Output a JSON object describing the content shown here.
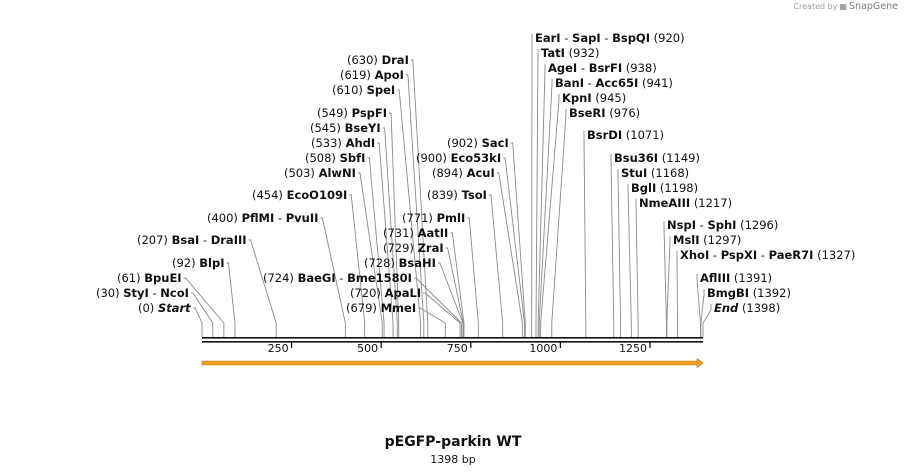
{
  "watermark": {
    "prefix": "Created by",
    "brand": "SnapGene"
  },
  "plasmid": {
    "name": "pEGFP-parkin WT",
    "length_label": "1398 bp",
    "length": 1398
  },
  "axis_ticks": [
    {
      "pos": 250,
      "label": "250"
    },
    {
      "pos": 500,
      "label": "500"
    },
    {
      "pos": 750,
      "label": "750"
    },
    {
      "pos": 1000,
      "label": "1000"
    },
    {
      "pos": 1250,
      "label": "1250"
    }
  ],
  "feature": {
    "name": "orf-arrow",
    "start": 1,
    "end": 1398,
    "color": "#f0a020"
  },
  "sites": [
    {
      "pos": 0,
      "names": [
        "Start"
      ],
      "num": "(0)",
      "italic": true,
      "side": "left"
    },
    {
      "pos": 30,
      "names": [
        "StyI",
        "NcoI"
      ],
      "num": "(30)",
      "side": "left"
    },
    {
      "pos": 61,
      "names": [
        "BpuEI"
      ],
      "num": "(61)",
      "side": "left"
    },
    {
      "pos": 92,
      "names": [
        "BlpI"
      ],
      "num": "(92)",
      "side": "left"
    },
    {
      "pos": 207,
      "names": [
        "BsaI",
        "DraIII"
      ],
      "num": "(207)",
      "side": "left"
    },
    {
      "pos": 400,
      "names": [
        "PflMI",
        "PvuII"
      ],
      "num": "(400)",
      "side": "left"
    },
    {
      "pos": 454,
      "names": [
        "EcoO109I"
      ],
      "num": "(454)",
      "side": "left"
    },
    {
      "pos": 503,
      "names": [
        "AlwNI"
      ],
      "num": "(503)",
      "side": "left"
    },
    {
      "pos": 508,
      "names": [
        "SbfI"
      ],
      "num": "(508)",
      "side": "left"
    },
    {
      "pos": 533,
      "names": [
        "AhdI"
      ],
      "num": "(533)",
      "side": "left"
    },
    {
      "pos": 545,
      "names": [
        "BseYI"
      ],
      "num": "(545)",
      "side": "left"
    },
    {
      "pos": 549,
      "names": [
        "PspFI"
      ],
      "num": "(549)",
      "side": "left"
    },
    {
      "pos": 610,
      "names": [
        "SpeI"
      ],
      "num": "(610)",
      "side": "left"
    },
    {
      "pos": 619,
      "names": [
        "ApoI"
      ],
      "num": "(619)",
      "side": "left"
    },
    {
      "pos": 630,
      "names": [
        "DraI"
      ],
      "num": "(630)",
      "side": "left"
    },
    {
      "pos": 724,
      "names": [
        "BaeGI",
        "Bme1580I"
      ],
      "num": "(724)",
      "side": "left"
    },
    {
      "pos": 720,
      "names": [
        "ApaLI"
      ],
      "num": "(720)",
      "side": "left"
    },
    {
      "pos": 679,
      "names": [
        "MmeI"
      ],
      "num": "(679)",
      "side": "left"
    },
    {
      "pos": 728,
      "names": [
        "BsaHI"
      ],
      "num": "(728)",
      "side": "left"
    },
    {
      "pos": 729,
      "names": [
        "ZraI"
      ],
      "num": "(729)",
      "side": "left"
    },
    {
      "pos": 731,
      "names": [
        "AatII"
      ],
      "num": "(731)",
      "side": "left"
    },
    {
      "pos": 771,
      "names": [
        "PmlI"
      ],
      "num": "(771)",
      "side": "left"
    },
    {
      "pos": 839,
      "names": [
        "TsoI"
      ],
      "num": "(839)",
      "side": "left"
    },
    {
      "pos": 894,
      "names": [
        "AcuI"
      ],
      "num": "(894)",
      "side": "left"
    },
    {
      "pos": 900,
      "names": [
        "Eco53kI"
      ],
      "num": "(900)",
      "side": "left"
    },
    {
      "pos": 902,
      "names": [
        "SacI"
      ],
      "num": "(902)",
      "side": "left"
    },
    {
      "pos": 920,
      "names": [
        "EarI",
        "SapI",
        "BspQI"
      ],
      "num": "(920)",
      "side": "right"
    },
    {
      "pos": 932,
      "names": [
        "TatI"
      ],
      "num": "(932)",
      "side": "right"
    },
    {
      "pos": 938,
      "names": [
        "AgeI",
        "BsrFI"
      ],
      "num": "(938)",
      "side": "right"
    },
    {
      "pos": 941,
      "names": [
        "BanI",
        "Acc65I"
      ],
      "num": "(941)",
      "side": "right"
    },
    {
      "pos": 945,
      "names": [
        "KpnI"
      ],
      "num": "(945)",
      "side": "right"
    },
    {
      "pos": 976,
      "names": [
        "BseRI"
      ],
      "num": "(976)",
      "side": "right"
    },
    {
      "pos": 1071,
      "names": [
        "BsrDI"
      ],
      "num": "(1071)",
      "side": "right"
    },
    {
      "pos": 1149,
      "names": [
        "Bsu36I"
      ],
      "num": "(1149)",
      "side": "right"
    },
    {
      "pos": 1168,
      "names": [
        "StuI"
      ],
      "num": "(1168)",
      "side": "right"
    },
    {
      "pos": 1198,
      "names": [
        "BglI"
      ],
      "num": "(1198)",
      "side": "right"
    },
    {
      "pos": 1217,
      "names": [
        "NmeAIII"
      ],
      "num": "(1217)",
      "side": "right"
    },
    {
      "pos": 1296,
      "names": [
        "NspI",
        "SphI"
      ],
      "num": "(1296)",
      "side": "right"
    },
    {
      "pos": 1297,
      "names": [
        "MslI"
      ],
      "num": "(1297)",
      "side": "right"
    },
    {
      "pos": 1327,
      "names": [
        "XhoI",
        "PspXI",
        "PaeR7I"
      ],
      "num": "(1327)",
      "side": "right"
    },
    {
      "pos": 1391,
      "names": [
        "AflIII"
      ],
      "num": "(1391)",
      "side": "right"
    },
    {
      "pos": 1392,
      "names": [
        "BmgBI"
      ],
      "num": "(1392)",
      "side": "right"
    },
    {
      "pos": 1398,
      "names": [
        "End"
      ],
      "num": "(1398)",
      "italic": true,
      "side": "right"
    }
  ]
}
